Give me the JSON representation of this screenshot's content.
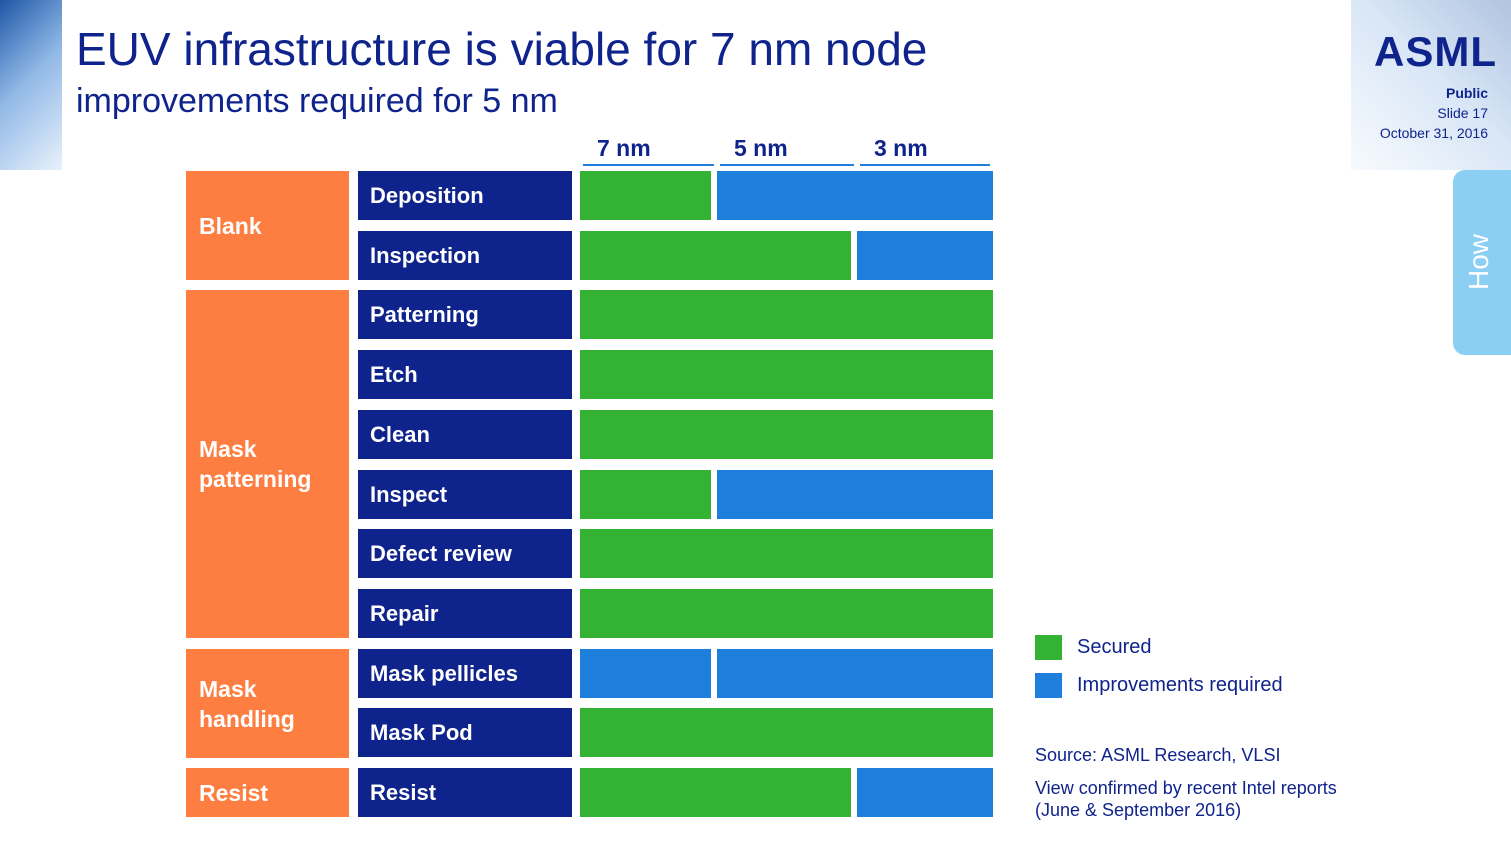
{
  "header": {
    "title": "EUV infrastructure is viable for 7 nm node",
    "subtitle": "improvements required for 5 nm",
    "logo": "ASML",
    "classification": "Public",
    "slide": "Slide 17",
    "date": "October 31, 2016",
    "side_tab": "How"
  },
  "colors": {
    "secured": "#34b233",
    "improvements": "#1e80dc",
    "group": "#fd7e40",
    "item": "#0f238c",
    "text": "#0f238c"
  },
  "chart_data": {
    "type": "table",
    "columns": [
      "7 nm",
      "5 nm",
      "3 nm"
    ],
    "groups": [
      {
        "label": "Blank",
        "items": [
          "Deposition",
          "Inspection"
        ]
      },
      {
        "label": "Mask patterning",
        "items": [
          "Patterning",
          "Etch",
          "Clean",
          "Inspect",
          "Defect review",
          "Repair"
        ]
      },
      {
        "label": "Mask handling",
        "items": [
          "Mask pellicles",
          "Mask Pod"
        ]
      },
      {
        "label": "Resist",
        "items": [
          "Resist"
        ]
      }
    ],
    "rows": [
      {
        "item": "Deposition",
        "segments": [
          {
            "from": 0,
            "to": 1,
            "status": "secured"
          },
          {
            "from": 1,
            "to": 3,
            "status": "improvements"
          }
        ]
      },
      {
        "item": "Inspection",
        "segments": [
          {
            "from": 0,
            "to": 2,
            "status": "secured"
          },
          {
            "from": 2,
            "to": 3,
            "status": "improvements"
          }
        ]
      },
      {
        "item": "Patterning",
        "segments": [
          {
            "from": 0,
            "to": 3,
            "status": "secured"
          }
        ]
      },
      {
        "item": "Etch",
        "segments": [
          {
            "from": 0,
            "to": 3,
            "status": "secured"
          }
        ]
      },
      {
        "item": "Clean",
        "segments": [
          {
            "from": 0,
            "to": 3,
            "status": "secured"
          }
        ]
      },
      {
        "item": "Inspect",
        "segments": [
          {
            "from": 0,
            "to": 1,
            "status": "secured"
          },
          {
            "from": 1,
            "to": 3,
            "status": "improvements"
          }
        ]
      },
      {
        "item": "Defect review",
        "segments": [
          {
            "from": 0,
            "to": 3,
            "status": "secured"
          }
        ]
      },
      {
        "item": "Repair",
        "segments": [
          {
            "from": 0,
            "to": 3,
            "status": "secured"
          }
        ]
      },
      {
        "item": "Mask pellicles",
        "segments": [
          {
            "from": 0,
            "to": 1,
            "status": "improvements"
          },
          {
            "from": 1,
            "to": 3,
            "status": "improvements"
          }
        ]
      },
      {
        "item": "Mask Pod",
        "segments": [
          {
            "from": 0,
            "to": 3,
            "status": "secured"
          }
        ]
      },
      {
        "item": "Resist",
        "segments": [
          {
            "from": 0,
            "to": 2,
            "status": "secured"
          },
          {
            "from": 2,
            "to": 3,
            "status": "improvements"
          }
        ]
      }
    ],
    "legend": [
      {
        "status": "secured",
        "label": "Secured"
      },
      {
        "status": "improvements",
        "label": "Improvements required"
      }
    ]
  },
  "notes": {
    "source": "Source: ASML Research, VLSI",
    "confirm_line1": "View confirmed by recent  Intel reports",
    "confirm_line2": "(June & September 2016)"
  }
}
